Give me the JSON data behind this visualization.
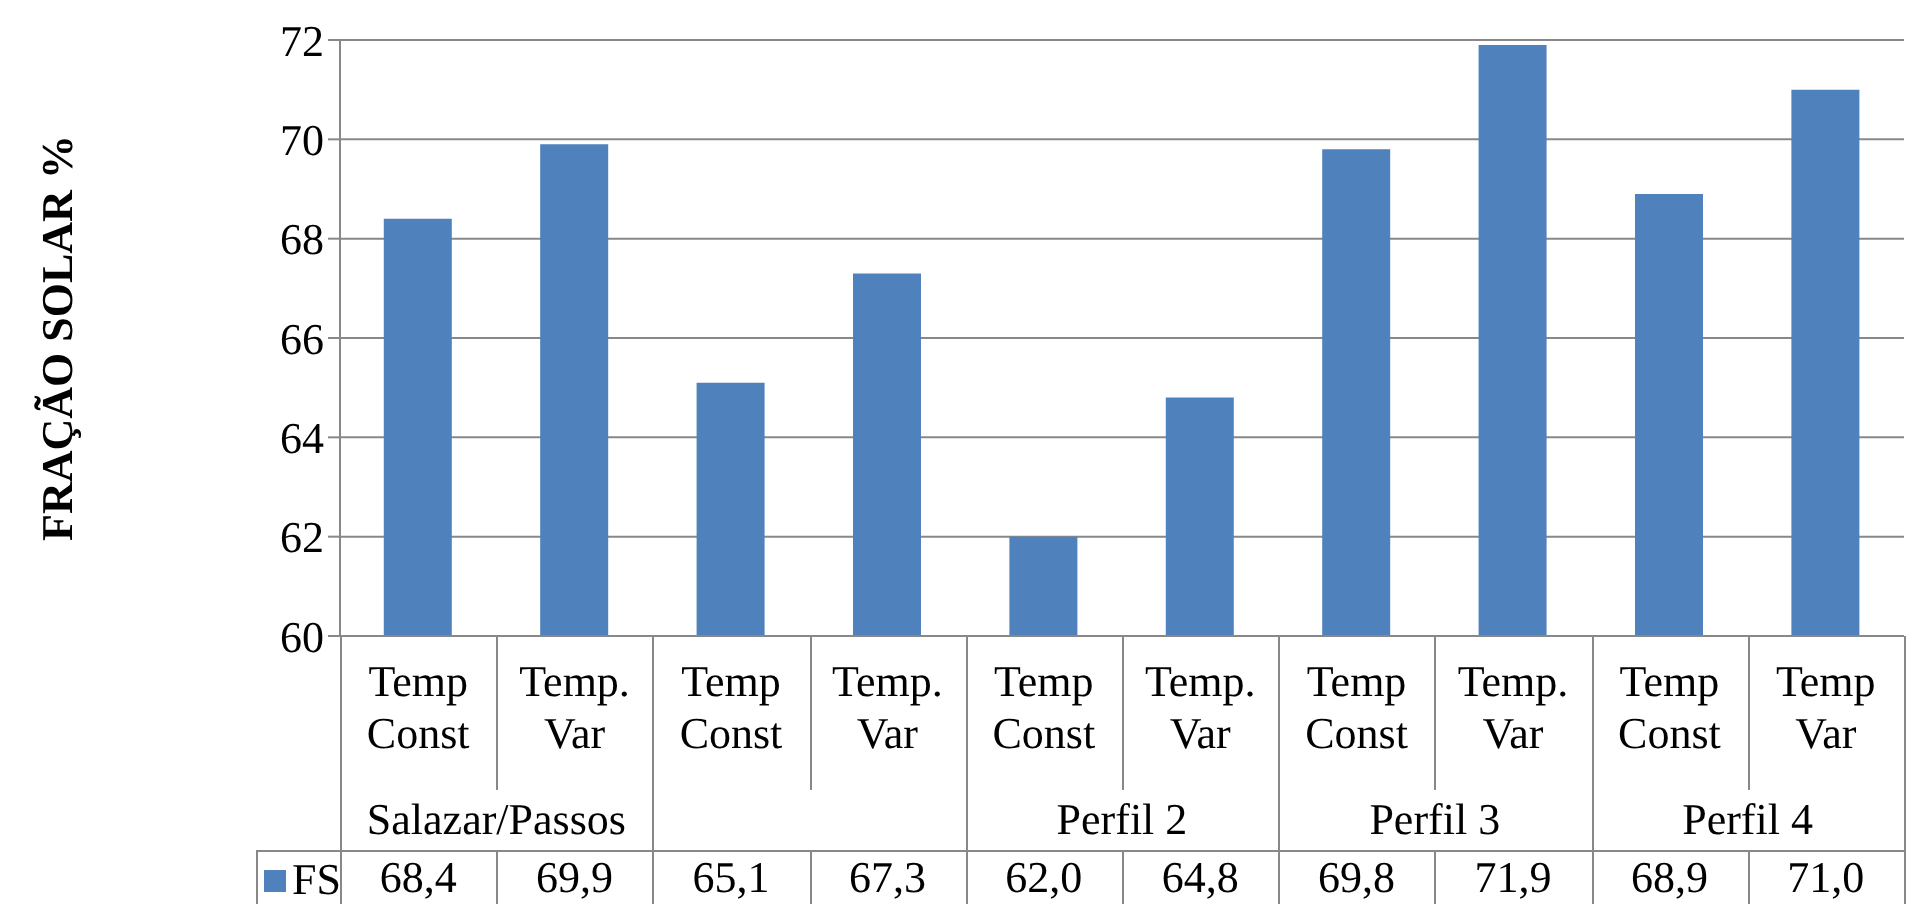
{
  "chart_data": {
    "type": "bar",
    "ylabel": "FRAÇÃO SOLAR %",
    "categories": [
      "Temp Const",
      "Temp. Var",
      "Temp Const",
      "Temp. Var",
      "Temp Const",
      "Temp. Var",
      "Temp Const",
      "Temp. Var",
      "Temp Const",
      "Temp Var"
    ],
    "series": [
      {
        "name": "FS",
        "color": "#4f81bd",
        "values": [
          68.4,
          69.9,
          65.1,
          67.3,
          62.0,
          64.8,
          69.8,
          71.9,
          68.9,
          71.0
        ],
        "value_labels": [
          "68,4",
          "69,9",
          "65,1",
          "67,3",
          "62,0",
          "64,8",
          "69,8",
          "71,9",
          "68,9",
          "71,0"
        ]
      }
    ],
    "annotations": [
      "Salazar/Passos",
      null,
      "Perfil 2",
      "Perfil 3",
      "Perfil 4"
    ],
    "ylim": [
      60,
      72
    ],
    "yticks": [
      60,
      62,
      64,
      66,
      68,
      70,
      72
    ],
    "grid": "y",
    "legend": "bottom"
  }
}
